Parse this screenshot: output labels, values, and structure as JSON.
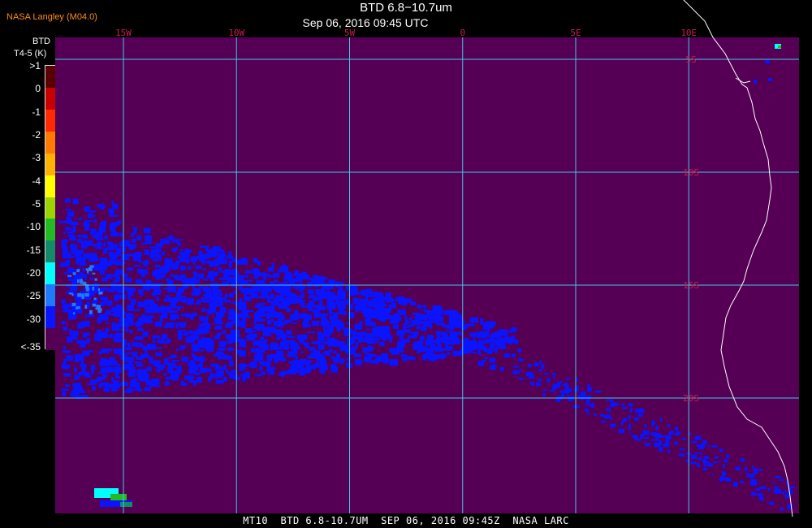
{
  "header": {
    "credit": "NASA Langley (M04.0)",
    "title": "BTD 6.8−10.7um",
    "subtitle": "Sep 06, 2016 09:45 UTC"
  },
  "legend": {
    "title": "BTD",
    "units": "T4-5 (K)",
    "labels": [
      ">1",
      "0",
      "-1",
      "-2",
      "-3",
      "-4",
      "-5",
      "-10",
      "-15",
      "-20",
      "-25",
      "-30",
      "<-35"
    ],
    "colors": [
      "#5a0000",
      "#c80000",
      "#ff2a00",
      "#ff7a00",
      "#ffb000",
      "#ffff00",
      "#9cd400",
      "#22bb22",
      "#138a6a",
      "#00ffff",
      "#1e7aff",
      "#0a14ff",
      "#550055"
    ]
  },
  "map": {
    "background_color": "#550055",
    "grid_color": "#3fc8e6",
    "coast_color": "#ffffff",
    "lon_label_color": "#c81e4e",
    "lat_label_color": "#c81e4e",
    "cloud_color": "#0a14ff",
    "longitudes": [
      {
        "label": "15W",
        "value": -15
      },
      {
        "label": "10W",
        "value": -10
      },
      {
        "label": "5W",
        "value": -5
      },
      {
        "label": "0",
        "value": 0
      },
      {
        "label": "5E",
        "value": 5
      },
      {
        "label": "10E",
        "value": 10
      }
    ],
    "latitudes": [
      {
        "label": "5S",
        "value": -5
      },
      {
        "label": "10S",
        "value": -10
      },
      {
        "label": "15S",
        "value": -15
      },
      {
        "label": "20S",
        "value": -20
      }
    ]
  },
  "footer": {
    "text": "MT10  BTD 6.8-10.7UM  SEP 06, 2016 09:45Z  NASA LARC"
  }
}
